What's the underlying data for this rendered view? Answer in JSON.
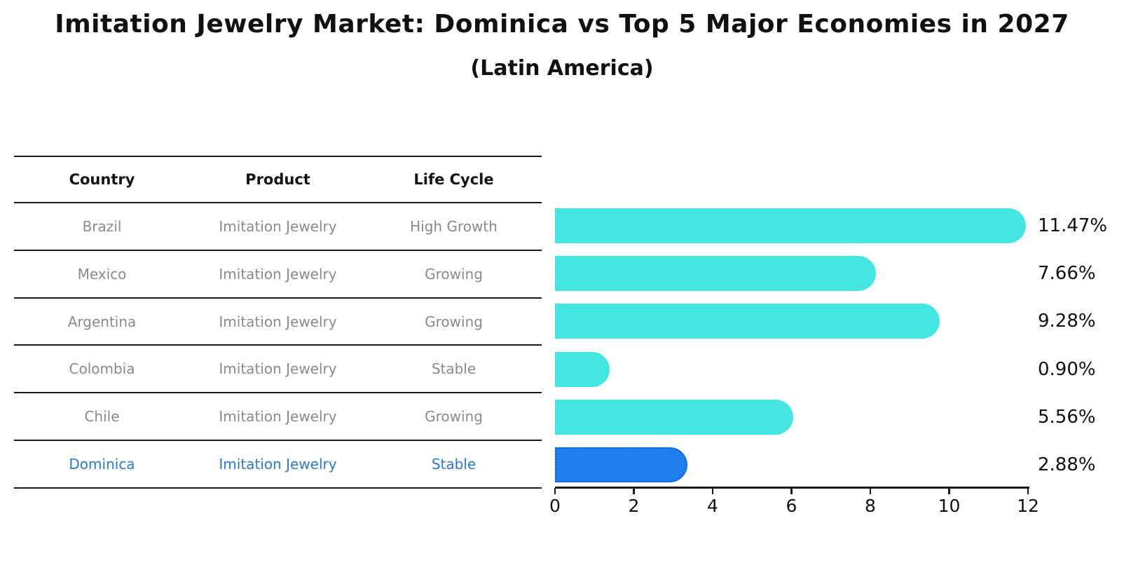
{
  "title": "Imitation Jewelry Market: Dominica vs Top 5 Major Economies in 2027",
  "subtitle": "(Latin America)",
  "table": {
    "headers": [
      "Country",
      "Product",
      "Life Cycle"
    ],
    "rows": [
      {
        "country": "Brazil",
        "product": "Imitation Jewelry",
        "life_cycle": "High Growth",
        "highlight": false
      },
      {
        "country": "Mexico",
        "product": "Imitation Jewelry",
        "life_cycle": "Growing",
        "highlight": false
      },
      {
        "country": "Argentina",
        "product": "Imitation Jewelry",
        "life_cycle": "Growing",
        "highlight": false
      },
      {
        "country": "Colombia",
        "product": "Imitation Jewelry",
        "life_cycle": "Stable",
        "highlight": false
      },
      {
        "country": "Chile",
        "product": "Imitation Jewelry",
        "life_cycle": "Growing",
        "highlight": false
      },
      {
        "country": "Dominica",
        "product": "Imitation Jewelry",
        "life_cycle": "Stable",
        "highlight": true
      }
    ]
  },
  "chart_data": {
    "type": "bar",
    "orientation": "horizontal",
    "categories": [
      "Brazil",
      "Mexico",
      "Argentina",
      "Colombia",
      "Chile",
      "Dominica"
    ],
    "values": [
      11.47,
      7.66,
      9.28,
      0.9,
      5.56,
      2.88
    ],
    "value_labels": [
      "11.47%",
      "7.66%",
      "9.28%",
      "0.90%",
      "5.56%",
      "2.88%"
    ],
    "x_ticks": [
      "0",
      "2",
      "4",
      "6",
      "8",
      "10",
      "12"
    ],
    "xlim": [
      0,
      12
    ],
    "grid": false,
    "legend": "none",
    "highlight_category": "Dominica",
    "title": "Imitation Jewelry Market: Dominica vs Top 5 Major Economies in 2027",
    "subtitle": "(Latin America)",
    "xlabel": "",
    "ylabel": ""
  },
  "colors": {
    "bar_cyan": "#45E6E2",
    "bar_blue": "#1E7EED",
    "highlight_text": "#2A7CC9",
    "text_gray": "#8A8A8A",
    "text_black": "#111111",
    "line_black": "#1A1A1A"
  }
}
